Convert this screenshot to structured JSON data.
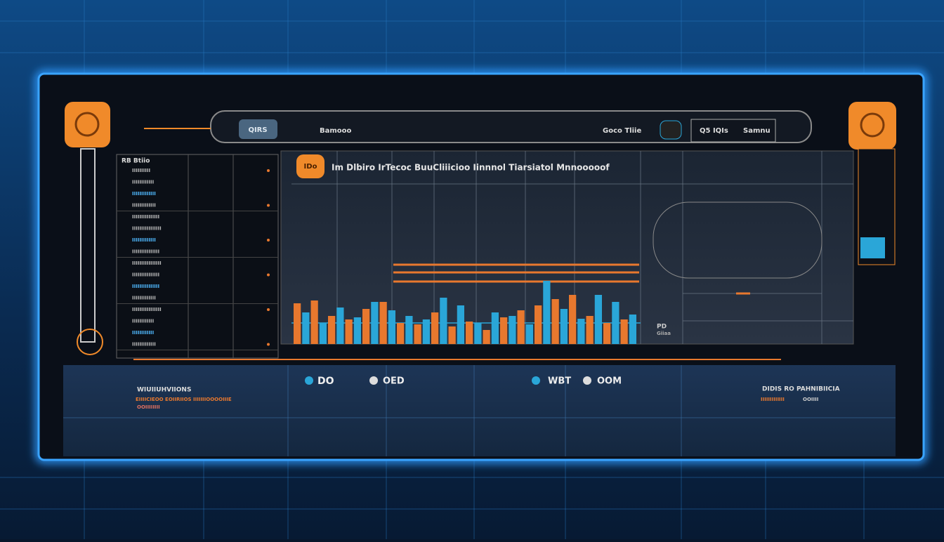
{
  "top_bar": {
    "pill": "QIRS",
    "left_label": "Bamooo",
    "center_label": "Goco Tliie",
    "right_code": "Q5 IQIs",
    "right_label": "Samnu"
  },
  "left_table": {
    "title": "RB Btiio",
    "rows": [
      "IIIIIIIIII",
      "IIIIIIIIIIII",
      "IIIIIIIIIIIII",
      "IIIIIIIIIIIII",
      "IIIIIIIIIIIIIII",
      "IIIIIIIIIIIIIIII",
      "IIIIIIIIIIIII",
      "IIIIIIIIIIIIIII",
      "IIIIIIIIIIIIIIII",
      "IIIIIIIIIIIIIII",
      "IIIIIIIIIIIIIII",
      "IIIIIIIIIIIII",
      "IIIIIIIIIIIIIIII",
      "IIIIIIIIIIII",
      "IIIIIIIIIIII",
      "IIIIIIIIIIIII"
    ]
  },
  "chart": {
    "badge": "IDo",
    "title": "Im Dlbiro IrTecoc BuuCliiicioo Iinnnol Tiarsiatol Mnnooooof",
    "side_code": "PD",
    "side_label": "Giiaa",
    "series": [
      {
        "color": "#e8782e",
        "values": [
          58,
          62,
          40,
          35,
          50,
          60,
          30,
          28,
          45,
          25,
          32,
          20,
          38,
          48,
          55,
          64,
          70,
          40,
          30,
          35
        ]
      },
      {
        "color": "#2aa6d8",
        "values": [
          45,
          30,
          52,
          38,
          60,
          48,
          40,
          35,
          66,
          55,
          30,
          45,
          40,
          28,
          90,
          50,
          36,
          70,
          60,
          42
        ]
      }
    ]
  },
  "bottom": {
    "left_title": "WIUIIUHVIIONS",
    "left_sub": "EIIIICIEOO EOIIRIIOS IIIIIIIOOOOIIIE",
    "left_note": "OOIIIIIIII",
    "stat1": "DO",
    "stat2": "OED",
    "stat3": "WBT",
    "stat4": "OOM",
    "right_title": "DIDIS RO PAHNIBIICIA",
    "right_sub": "IIIIIIIIIIIII",
    "right_note": "OOIIII"
  }
}
